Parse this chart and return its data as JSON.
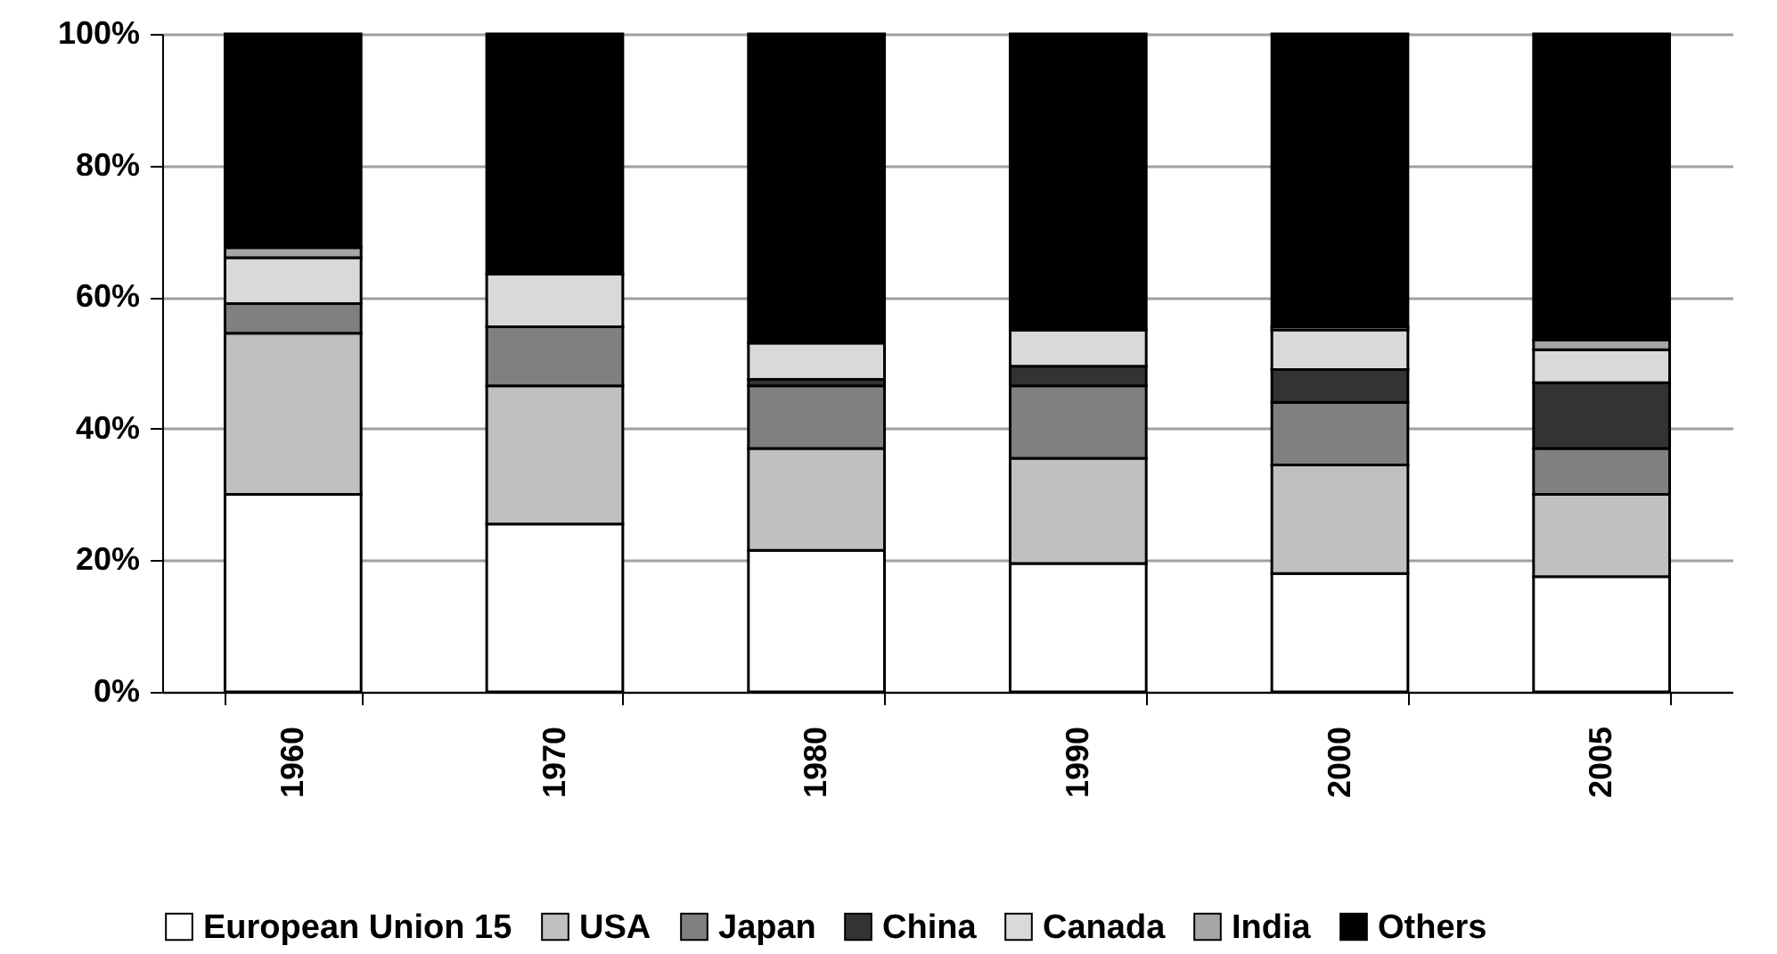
{
  "chart_data": {
    "type": "bar",
    "stacked": true,
    "categories": [
      "1960",
      "1970",
      "1980",
      "1990",
      "2000",
      "2005"
    ],
    "series": [
      {
        "name": "European Union 15",
        "color": "#ffffff",
        "values": [
          30,
          25.5,
          21.5,
          19.5,
          18,
          17.5
        ]
      },
      {
        "name": "USA",
        "color": "#c0c0c0",
        "values": [
          24.5,
          21,
          15.5,
          16,
          16.5,
          12.5
        ]
      },
      {
        "name": "Japan",
        "color": "#808080",
        "values": [
          4.5,
          9,
          9.5,
          11,
          9.5,
          7
        ]
      },
      {
        "name": "China",
        "color": "#333333",
        "values": [
          0,
          0,
          1,
          3,
          5,
          10
        ]
      },
      {
        "name": "Canada",
        "color": "#d9d9d9",
        "values": [
          7,
          8,
          5.5,
          5.5,
          6,
          5
        ]
      },
      {
        "name": "India",
        "color": "#a6a6a6",
        "values": [
          1.5,
          0,
          0,
          0,
          0.5,
          1.5
        ]
      },
      {
        "name": "Others",
        "color": "#000000",
        "values": [
          32.5,
          36.5,
          47,
          45,
          44.5,
          46.5
        ]
      }
    ],
    "ylim": [
      0,
      100
    ],
    "yticks": [
      {
        "value": 0,
        "label": "0%"
      },
      {
        "value": 20,
        "label": "20%"
      },
      {
        "value": 40,
        "label": "40%"
      },
      {
        "value": 60,
        "label": "60%"
      },
      {
        "value": 80,
        "label": "80%"
      },
      {
        "value": 100,
        "label": "100%"
      }
    ],
    "grid": "y",
    "legend": "bottom"
  }
}
